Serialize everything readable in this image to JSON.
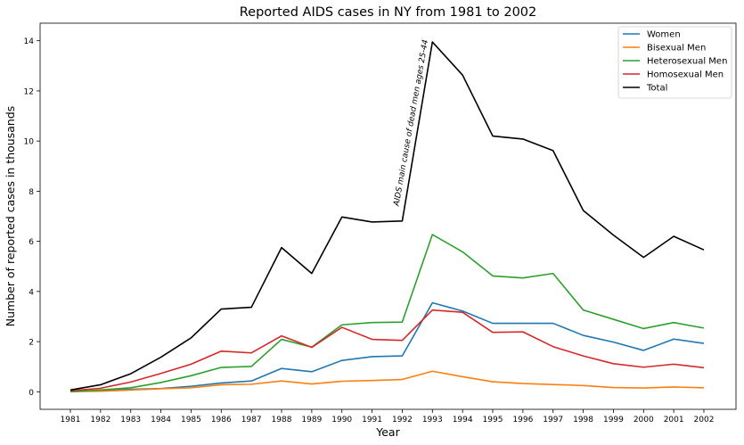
{
  "chart_data": {
    "type": "line",
    "title": "Reported AIDS cases in NY from 1981 to 2002",
    "xlabel": "Year",
    "ylabel": "Number of reported cases in thousands",
    "x": [
      "1981",
      "1982",
      "1983",
      "1984",
      "1985",
      "1986",
      "1987",
      "1988",
      "1989",
      "1990",
      "1991",
      "1992",
      "1993",
      "1994",
      "1995",
      "1996",
      "1997",
      "1998",
      "1999",
      "2000",
      "2001",
      "2002"
    ],
    "ylim": [
      -0.7,
      14.7
    ],
    "yticks": [
      "0",
      "2",
      "4",
      "6",
      "8",
      "10",
      "12",
      "14"
    ],
    "legend_position": "top-right",
    "grid": false,
    "series": [
      {
        "name": "Women",
        "color": "#1f77b4",
        "values": [
          0.02,
          0.05,
          0.1,
          0.13,
          0.22,
          0.35,
          0.43,
          0.93,
          0.8,
          1.25,
          1.4,
          1.43,
          3.55,
          3.22,
          2.73,
          2.73,
          2.73,
          2.25,
          1.98,
          1.65,
          2.1,
          1.93
        ]
      },
      {
        "name": "Bisexual Men",
        "color": "#ff7f0e",
        "values": [
          0.01,
          0.02,
          0.07,
          0.12,
          0.16,
          0.28,
          0.3,
          0.43,
          0.31,
          0.42,
          0.45,
          0.49,
          0.82,
          0.6,
          0.4,
          0.33,
          0.29,
          0.25,
          0.17,
          0.15,
          0.19,
          0.16
        ]
      },
      {
        "name": "Heterosexual Men",
        "color": "#2ca02c",
        "values": [
          0.0,
          0.07,
          0.16,
          0.37,
          0.64,
          0.97,
          1.01,
          2.09,
          1.78,
          2.67,
          2.76,
          2.78,
          6.27,
          5.58,
          4.62,
          4.54,
          4.72,
          3.26,
          2.89,
          2.52,
          2.76,
          2.54
        ]
      },
      {
        "name": "Homosexual Men",
        "color": "#d62728",
        "values": [
          0.04,
          0.14,
          0.39,
          0.73,
          1.1,
          1.62,
          1.55,
          2.23,
          1.77,
          2.57,
          2.09,
          2.05,
          3.26,
          3.17,
          2.37,
          2.39,
          1.8,
          1.43,
          1.12,
          0.98,
          1.1,
          0.96
        ]
      },
      {
        "name": "Total",
        "color": "#000000",
        "values": [
          0.07,
          0.28,
          0.72,
          1.38,
          2.15,
          3.3,
          3.37,
          5.75,
          4.72,
          6.97,
          6.77,
          6.81,
          13.95,
          12.63,
          10.2,
          10.08,
          9.62,
          7.23,
          6.25,
          5.36,
          6.2,
          5.66
        ]
      }
    ],
    "annotations": [
      {
        "text": "AIDS main cause of dead men ages 25-44",
        "x": "1992",
        "y": 7.4
      }
    ]
  }
}
